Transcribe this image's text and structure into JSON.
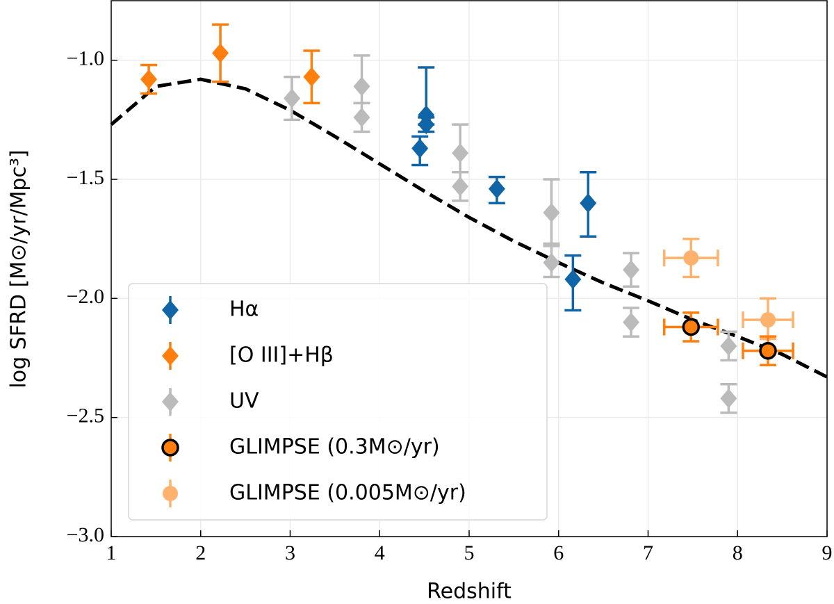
{
  "chart_data": {
    "type": "scatter",
    "xlabel": "Redshift",
    "ylabel": "log SFRD [M⊙/yr/Mpc³]",
    "xlim": [
      1,
      9
    ],
    "ylim": [
      -3.0,
      -0.75
    ],
    "xticks": [
      1,
      2,
      3,
      4,
      5,
      6,
      7,
      8,
      9
    ],
    "yticks": [
      {
        "value": -3.0,
        "label": "−3.0"
      },
      {
        "value": -2.5,
        "label": "−2.5"
      },
      {
        "value": -2.0,
        "label": "−2.0"
      },
      {
        "value": -1.5,
        "label": "−1.5"
      },
      {
        "value": -1.0,
        "label": "−1.0"
      }
    ],
    "grid": true,
    "legend": "lower left",
    "curve": {
      "color": "#000000",
      "style": "dashed",
      "x": [
        1,
        1.5,
        2,
        2.5,
        3,
        3.5,
        4,
        4.5,
        5,
        5.5,
        6,
        6.5,
        7,
        7.5,
        8,
        8.5,
        9
      ],
      "values": [
        -1.27,
        -1.11,
        -1.08,
        -1.12,
        -1.21,
        -1.32,
        -1.435,
        -1.55,
        -1.66,
        -1.76,
        -1.85,
        -1.935,
        -2.01,
        -2.09,
        -2.16,
        -2.235,
        -2.33
      ]
    },
    "series": [
      {
        "name": "Hα",
        "color": "#1065a6",
        "marker": "diamond",
        "x": [
          4.45,
          4.52,
          4.52,
          5.31,
          6.16,
          6.33
        ],
        "values": [
          -1.37,
          -1.23,
          -1.27,
          -1.54,
          -1.92,
          -1.6
        ],
        "yerr": [
          [
            0.07,
            0.05
          ],
          [
            0.04,
            0.2
          ],
          [
            0.03,
            0.03
          ],
          [
            0.06,
            0.05
          ],
          [
            0.13,
            0.1
          ],
          [
            0.14,
            0.13
          ]
        ]
      },
      {
        "name": "[O III]+Hβ",
        "color": "#ff7f0e",
        "marker": "diamond",
        "x": [
          1.42,
          2.22,
          3.24
        ],
        "values": [
          -1.08,
          -0.97,
          -1.07
        ],
        "yerr": [
          [
            0.06,
            0.06
          ],
          [
            0.12,
            0.12
          ],
          [
            0.11,
            0.11
          ]
        ]
      },
      {
        "name": "UV",
        "color": "#bbbbbb",
        "marker": "diamond",
        "x": [
          3.02,
          3.8,
          3.8,
          4.9,
          4.9,
          5.92,
          5.92,
          6.81,
          6.81,
          7.9,
          7.9
        ],
        "values": [
          -1.16,
          -1.11,
          -1.24,
          -1.39,
          -1.53,
          -1.64,
          -1.85,
          -1.88,
          -2.1,
          -2.2,
          -2.42
        ],
        "yerr": [
          [
            0.09,
            0.09
          ],
          [
            0.07,
            0.13
          ],
          [
            0.06,
            0.06
          ],
          [
            0.08,
            0.12
          ],
          [
            0.06,
            0.06
          ],
          [
            0.13,
            0.14
          ],
          [
            0.06,
            0.07
          ],
          [
            0.07,
            0.07
          ],
          [
            0.06,
            0.06
          ],
          [
            0.06,
            0.06
          ],
          [
            0.06,
            0.06
          ]
        ]
      },
      {
        "name": "GLIMPSE (0.3M⊙/yr)",
        "color": "#ff7f0e",
        "marker": "circle",
        "edgecolor": "#000000",
        "x": [
          7.48,
          8.34
        ],
        "values": [
          -2.12,
          -2.22
        ],
        "xerr": [
          0.3,
          0.28
        ],
        "yerr": [
          [
            0.06,
            0.06
          ],
          [
            0.06,
            0.06
          ]
        ]
      },
      {
        "name": "GLIMPSE (0.005M⊙/yr)",
        "color": "#ff7f0e",
        "marker": "circle",
        "alpha": 0.6,
        "x": [
          7.48,
          8.34
        ],
        "values": [
          -1.83,
          -2.09
        ],
        "xerr": [
          0.3,
          0.28
        ],
        "yerr": [
          [
            0.08,
            0.08
          ],
          [
            0.08,
            0.09
          ]
        ]
      }
    ]
  }
}
